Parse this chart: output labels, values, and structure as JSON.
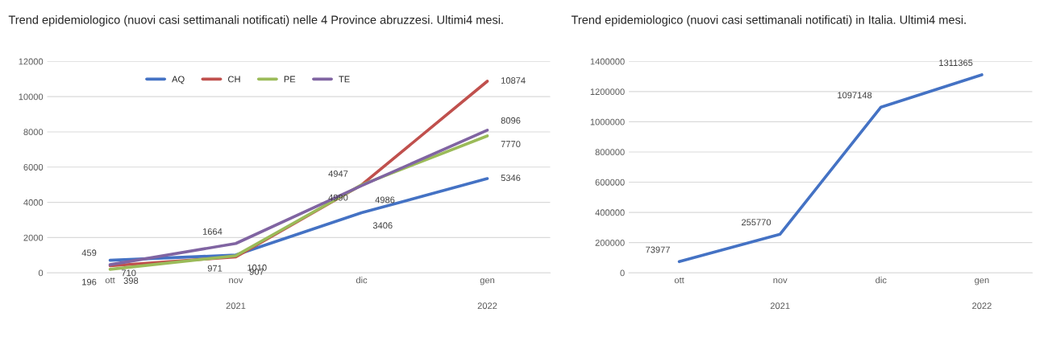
{
  "chart_data": [
    {
      "type": "line",
      "title": "Trend epidemiologico (nuovi casi settimanali notificati) nelle 4 Province abruzzesi. Ultimi4 mesi.",
      "categories": [
        "ott",
        "nov",
        "dic",
        "gen"
      ],
      "series": [
        {
          "name": "AQ",
          "color": "#4472c4",
          "values": [
            710,
            1010,
            3406,
            5346
          ]
        },
        {
          "name": "CH",
          "color": "#c0504d",
          "values": [
            398,
            907,
            4986,
            10874
          ]
        },
        {
          "name": "PE",
          "color": "#9bbb59",
          "values": [
            196,
            971,
            4990,
            7770
          ]
        },
        {
          "name": "TE",
          "color": "#8064a2",
          "values": [
            459,
            1664,
            4947,
            8096
          ]
        }
      ],
      "ylim": [
        0,
        12000
      ],
      "yticks": [
        0,
        2000,
        4000,
        6000,
        8000,
        10000,
        12000
      ],
      "grid": "y",
      "legend": "top",
      "data_labels": true,
      "annotations": [
        "2021",
        "2022"
      ]
    },
    {
      "type": "line",
      "title": "Trend epidemiologico (nuovi casi settimanali notificati) in Italia. Ultimi4 mesi.",
      "categories": [
        "ott",
        "nov",
        "dic",
        "gen"
      ],
      "series": [
        {
          "color": "#4472c4",
          "values": [
            73977,
            255770,
            1097148,
            1311365
          ]
        }
      ],
      "ylim": [
        0,
        1400000
      ],
      "yticks": [
        0,
        200000,
        400000,
        600000,
        800000,
        1000000,
        1200000,
        1400000
      ],
      "grid": "y",
      "data_labels": true,
      "annotations": [
        "2021",
        "2022"
      ]
    }
  ]
}
